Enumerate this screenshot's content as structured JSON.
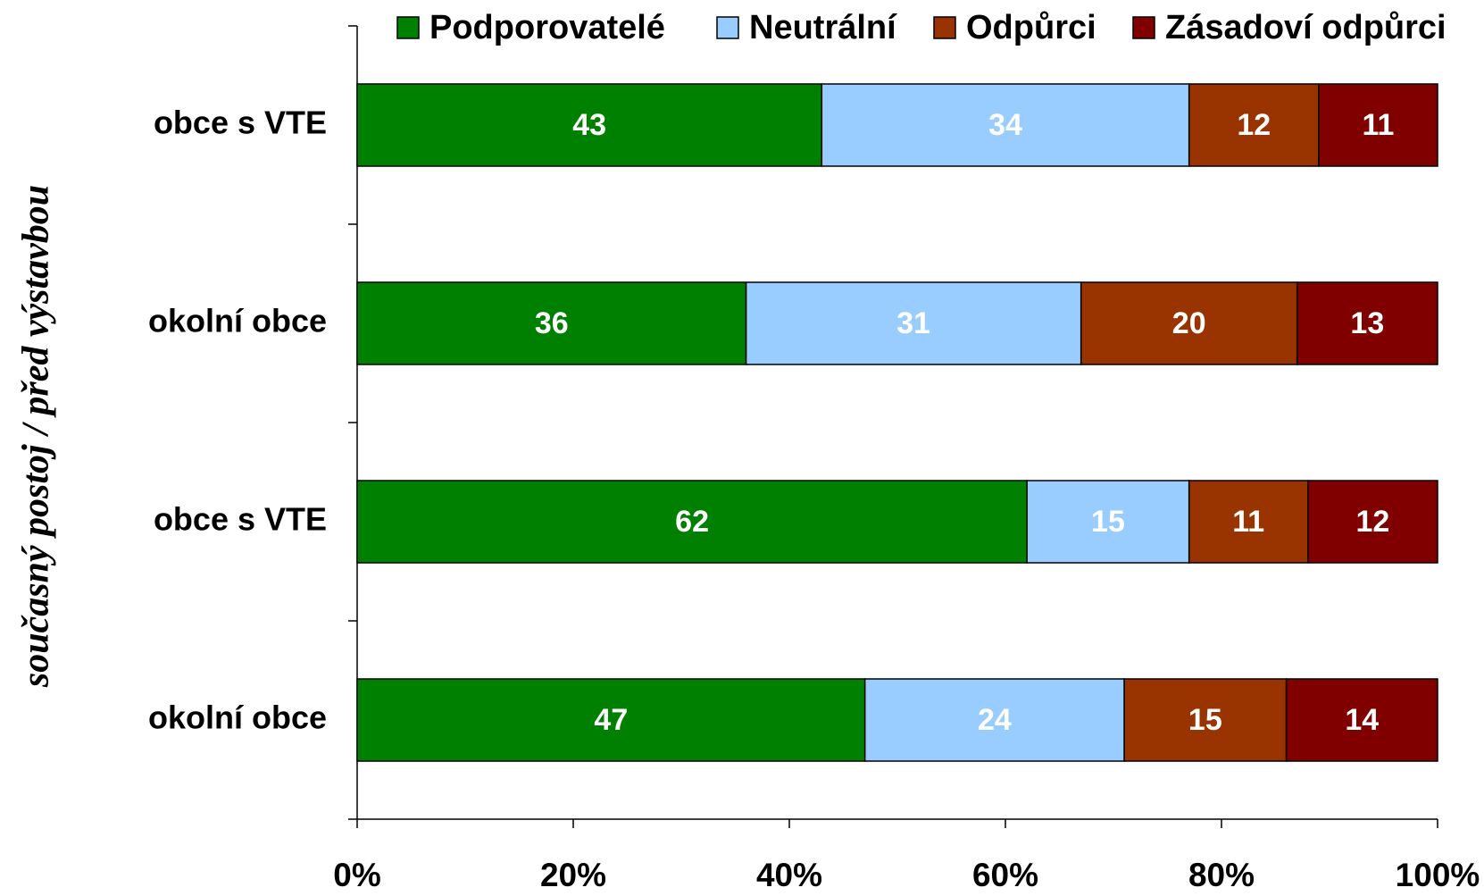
{
  "chart_data": {
    "type": "bar",
    "orientation": "horizontal",
    "stacked": true,
    "y_label": "současný postoj     /     před výstavbou",
    "categories": [
      "obce s VTE",
      "okolní obce",
      "obce s VTE",
      "okolní obce"
    ],
    "series": [
      {
        "name": "Podporovatelé",
        "color": "#008000",
        "values": [
          43,
          36,
          62,
          47
        ]
      },
      {
        "name": "Neutrální",
        "color": "#99ccff",
        "values": [
          34,
          31,
          15,
          24
        ]
      },
      {
        "name": "Odpůrci",
        "color": "#993300",
        "values": [
          12,
          20,
          11,
          15
        ]
      },
      {
        "name": "Zásadoví odpůrci",
        "color": "#800000",
        "values": [
          11,
          13,
          12,
          14
        ]
      }
    ],
    "xlim": [
      0,
      100
    ],
    "xticks": [
      {
        "value": 0,
        "label": "0%"
      },
      {
        "value": 20,
        "label": "20%"
      },
      {
        "value": 40,
        "label": "40%"
      },
      {
        "value": 60,
        "label": "60%"
      },
      {
        "value": 80,
        "label": "80%"
      },
      {
        "value": 100,
        "label": "100%"
      }
    ],
    "legend": "top"
  }
}
